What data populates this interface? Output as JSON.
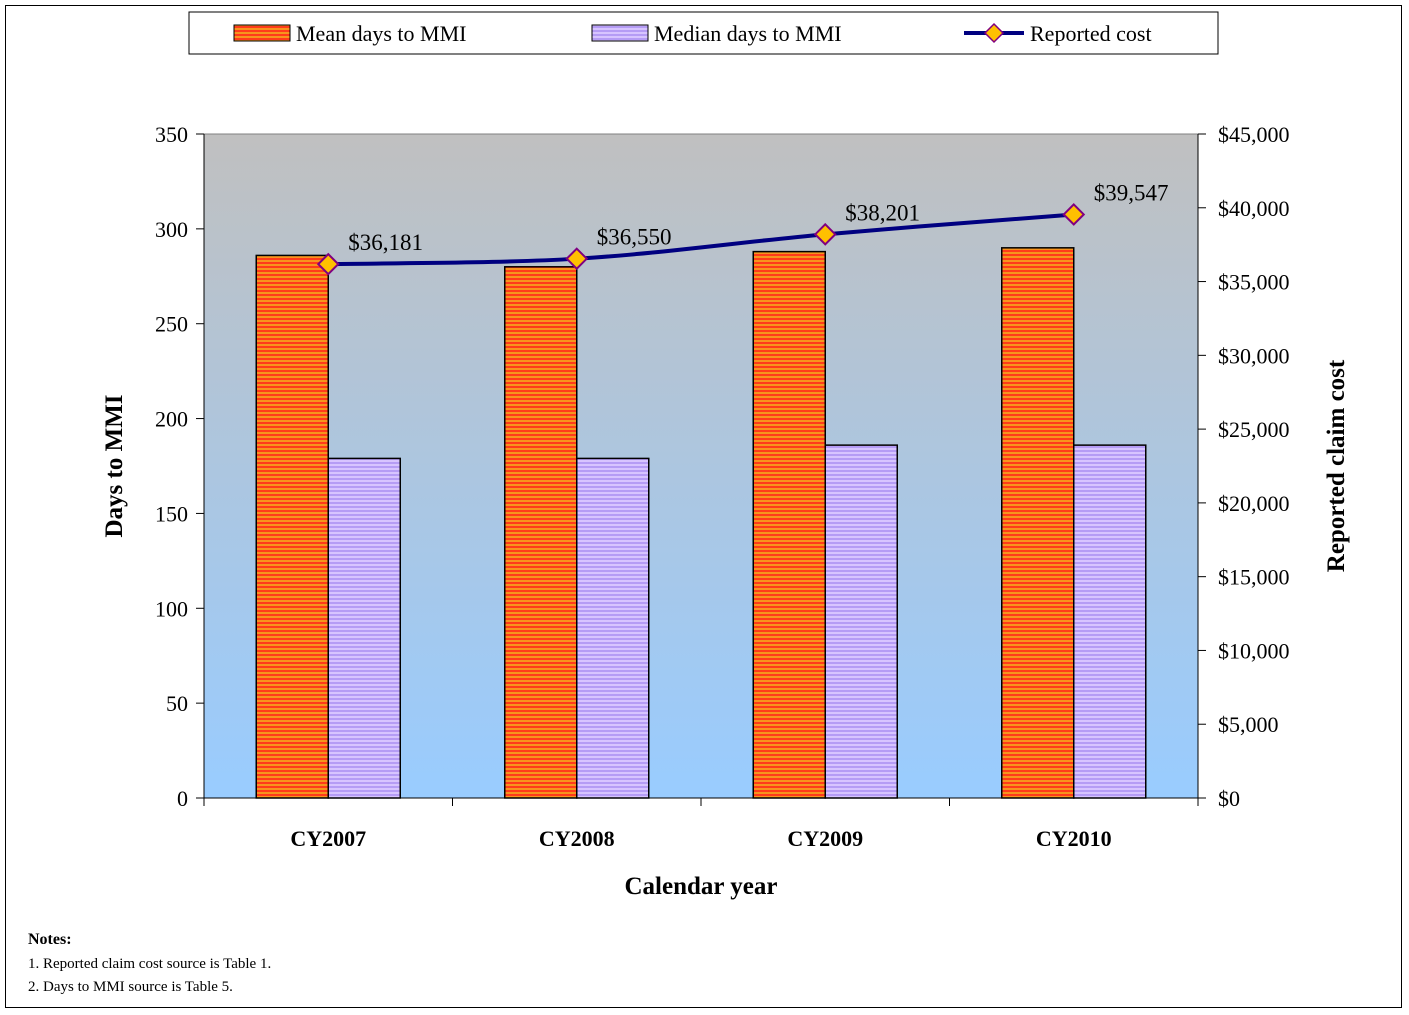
{
  "chart_data": {
    "type": "bar",
    "categories": [
      "CY2007",
      "CY2008",
      "CY2009",
      "CY2010"
    ],
    "series": [
      {
        "name": "Mean days to MMI",
        "kind": "bar",
        "axis": "left",
        "values": [
          286,
          280,
          288,
          290
        ],
        "color": "#ff3b1a"
      },
      {
        "name": "Median days to MMI",
        "kind": "bar",
        "axis": "left",
        "values": [
          179,
          179,
          186,
          186
        ],
        "color": "#c8a8ff"
      },
      {
        "name": "Reported cost",
        "kind": "line",
        "axis": "right",
        "values": [
          36181,
          36550,
          38201,
          39547
        ],
        "labels": [
          "$36,181",
          "$36,550",
          "$38,201",
          "$39,547"
        ],
        "color": "#000080",
        "marker_color": "#ffc000"
      }
    ],
    "xlabel": "Calendar year",
    "ylabel": "Days to MMI",
    "y2label": "Reported claim cost",
    "ylim": [
      0,
      350
    ],
    "y2lim": [
      0,
      45000
    ],
    "yticks": [
      "0",
      "50",
      "100",
      "150",
      "200",
      "250",
      "300",
      "350"
    ],
    "y2ticks": [
      "$0",
      "$5,000",
      "$10,000",
      "$15,000",
      "$20,000",
      "$25,000",
      "$30,000",
      "$35,000",
      "$40,000",
      "$45,000"
    ],
    "legend_position": "top",
    "grid": false
  },
  "notes": {
    "title": "Notes:",
    "items": [
      "1.  Reported claim cost source is Table 1.",
      "2.  Days to MMI source is Table 5."
    ]
  }
}
